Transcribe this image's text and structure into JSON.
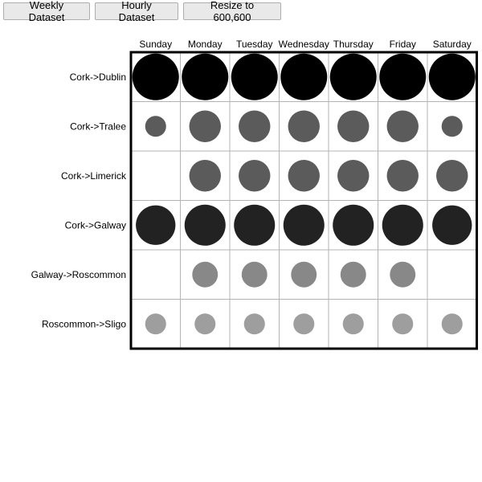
{
  "toolbar": {
    "weekly_label": "Weekly Dataset",
    "hourly_label": "Hourly Dataset",
    "resize_label": "Resize to 600,600"
  },
  "chart_data": {
    "type": "heatmap",
    "encoding": "circle size and darkness represent value",
    "columns": [
      "Sunday",
      "Monday",
      "Tuesday",
      "Wednesday",
      "Thursday",
      "Friday",
      "Saturday"
    ],
    "rows": [
      "Cork->Dublin",
      "Cork->Tralee",
      "Cork->Limerick",
      "Cork->Galway",
      "Galway->Roscommon",
      "Roscommon->Sligo"
    ],
    "values": [
      [
        1.0,
        1.0,
        1.0,
        1.0,
        1.0,
        1.0,
        1.0
      ],
      [
        0.45,
        0.68,
        0.68,
        0.68,
        0.68,
        0.68,
        0.45
      ],
      [
        null,
        0.68,
        0.68,
        0.68,
        0.68,
        0.68,
        0.68
      ],
      [
        0.85,
        0.88,
        0.88,
        0.88,
        0.88,
        0.88,
        0.85
      ],
      [
        null,
        0.55,
        0.55,
        0.55,
        0.55,
        0.55,
        null
      ],
      [
        0.45,
        0.45,
        0.45,
        0.45,
        0.45,
        0.45,
        0.45
      ]
    ],
    "colors": [
      "#000000",
      "#5b5b5b",
      "#5b5b5b",
      "#222222",
      "#888888",
      "#9e9e9e"
    ],
    "grid": true
  }
}
